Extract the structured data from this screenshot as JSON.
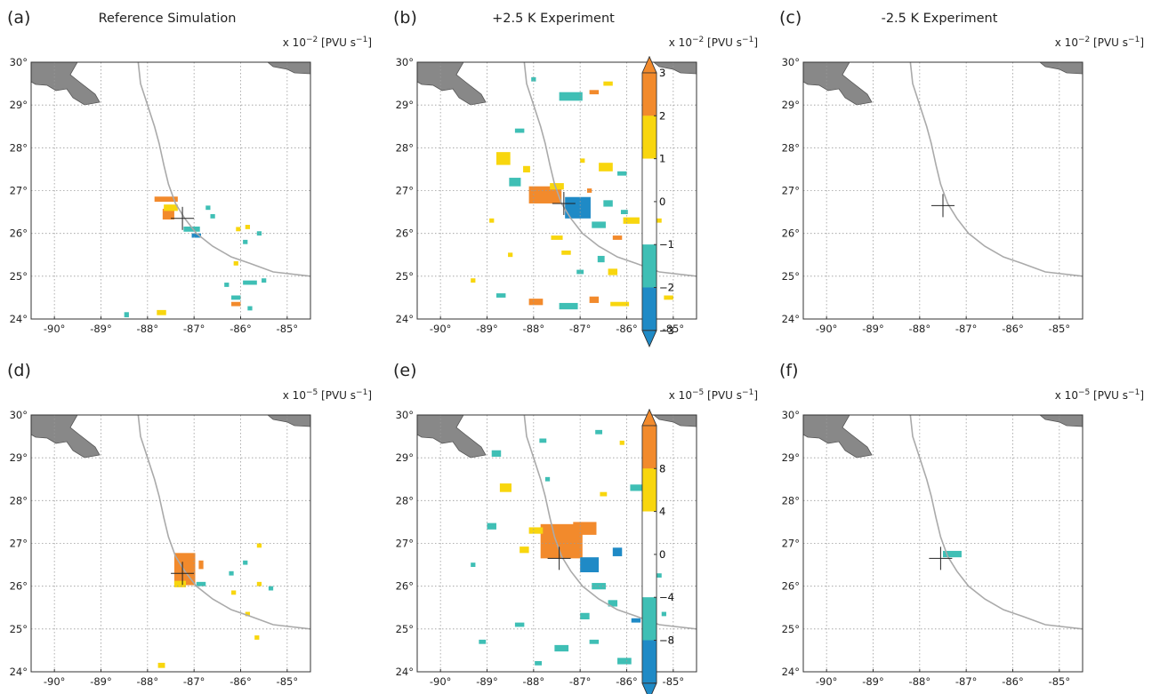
{
  "colors": {
    "orange": "#F28A2C",
    "yellow": "#F8D60E",
    "teal": "#3FBFB5",
    "blue": "#1F8AC6",
    "coast": "#AAAAAA",
    "land": "#888888",
    "grid": "#9A9A9A"
  },
  "chart_data": [
    {
      "panel": "(a)",
      "title": "Reference Simulation",
      "type": "heatmap",
      "units_prefix": "x 10",
      "units_exp": "−2",
      "units_suffix": "[PVU s",
      "units_suffix_exp": "−1",
      "units_close": "]",
      "colorbar": {
        "levels": [
          -3,
          -2,
          -1,
          0,
          1,
          2,
          3
        ],
        "tick_labels": [
          "−3",
          "−2",
          "−1",
          "0",
          "1",
          "2",
          "3"
        ],
        "classes": [
          "blue",
          "teal",
          "white",
          "white",
          "yellow",
          "orange"
        ],
        "extend": "both",
        "scale": 0.01
      },
      "xlim": [
        -90.5,
        -84.5
      ],
      "ylim": [
        24,
        30
      ],
      "xticks": [
        "-90°",
        "-89°",
        "-88°",
        "-87°",
        "-86°",
        "-85°"
      ],
      "yticks": [
        "24°",
        "25°",
        "26°",
        "27°",
        "28°",
        "29°",
        "30°"
      ],
      "grid": true,
      "marker": [
        -87.25,
        26.35
      ],
      "cells": [
        [
          -87.6,
          26.8,
          "orange",
          0.5,
          0.12
        ],
        [
          -87.55,
          26.45,
          "orange",
          0.25,
          0.25
        ],
        [
          -87.5,
          26.6,
          "yellow",
          0.3,
          0.15
        ],
        [
          -87.05,
          26.1,
          "teal",
          0.35,
          0.12
        ],
        [
          -86.95,
          25.95,
          "blue",
          0.2,
          0.1
        ],
        [
          -86.7,
          26.6,
          "teal",
          0.1,
          0.1
        ],
        [
          -86.6,
          26.4,
          "teal",
          0.1,
          0.1
        ],
        [
          -86.05,
          26.1,
          "yellow",
          0.1,
          0.1
        ],
        [
          -85.85,
          26.15,
          "yellow",
          0.1,
          0.1
        ],
        [
          -85.6,
          26.0,
          "teal",
          0.1,
          0.1
        ],
        [
          -85.9,
          25.8,
          "teal",
          0.1,
          0.1
        ],
        [
          -86.1,
          25.3,
          "yellow",
          0.1,
          0.1
        ],
        [
          -85.8,
          24.85,
          "teal",
          0.3,
          0.1
        ],
        [
          -85.5,
          24.9,
          "teal",
          0.1,
          0.1
        ],
        [
          -86.3,
          24.8,
          "teal",
          0.1,
          0.1
        ],
        [
          -86.1,
          24.5,
          "teal",
          0.2,
          0.1
        ],
        [
          -86.1,
          24.35,
          "orange",
          0.2,
          0.1
        ],
        [
          -85.8,
          24.25,
          "teal",
          0.1,
          0.1
        ],
        [
          -87.7,
          24.15,
          "yellow",
          0.2,
          0.12
        ],
        [
          -88.45,
          24.1,
          "teal",
          0.1,
          0.12
        ]
      ]
    },
    {
      "panel": "(b)",
      "title": "+2.5 K Experiment",
      "type": "heatmap",
      "units_prefix": "x 10",
      "units_exp": "−2",
      "units_suffix": "[PVU s",
      "units_suffix_exp": "−1",
      "units_close": "]",
      "colorbar": {
        "levels": [
          -3,
          -2,
          -1,
          0,
          1,
          2,
          3
        ],
        "tick_labels": [
          "−3",
          "−2",
          "−1",
          "0",
          "1",
          "2",
          "3"
        ],
        "classes": [
          "blue",
          "teal",
          "white",
          "white",
          "yellow",
          "orange"
        ],
        "extend": "both",
        "scale": 0.01
      },
      "xlim": [
        -90.5,
        -84.5
      ],
      "ylim": [
        24,
        30
      ],
      "xticks": [
        "-90°",
        "-89°",
        "-88°",
        "-87°",
        "-86°",
        "-85°"
      ],
      "yticks": [
        "24°",
        "25°",
        "26°",
        "27°",
        "28°",
        "29°",
        "30°"
      ],
      "grid": true,
      "marker": [
        -87.35,
        26.7
      ],
      "cells": [
        [
          -87.75,
          26.9,
          "orange",
          0.7,
          0.4
        ],
        [
          -87.05,
          26.6,
          "blue",
          0.55,
          0.5
        ],
        [
          -87.5,
          27.1,
          "yellow",
          0.3,
          0.15
        ],
        [
          -86.6,
          26.2,
          "teal",
          0.3,
          0.15
        ],
        [
          -86.2,
          25.9,
          "orange",
          0.2,
          0.1
        ],
        [
          -85.9,
          26.3,
          "yellow",
          0.35,
          0.15
        ],
        [
          -86.4,
          26.7,
          "teal",
          0.2,
          0.15
        ],
        [
          -86.8,
          27.0,
          "orange",
          0.1,
          0.1
        ],
        [
          -87.2,
          29.2,
          "teal",
          0.5,
          0.2
        ],
        [
          -86.7,
          29.3,
          "orange",
          0.2,
          0.1
        ],
        [
          -86.4,
          29.5,
          "yellow",
          0.2,
          0.1
        ],
        [
          -88.65,
          27.75,
          "yellow",
          0.3,
          0.3
        ],
        [
          -88.4,
          27.2,
          "teal",
          0.25,
          0.2
        ],
        [
          -88.15,
          27.5,
          "yellow",
          0.15,
          0.15
        ],
        [
          -86.45,
          27.55,
          "yellow",
          0.3,
          0.2
        ],
        [
          -86.1,
          27.4,
          "teal",
          0.2,
          0.1
        ],
        [
          -86.55,
          25.4,
          "teal",
          0.15,
          0.15
        ],
        [
          -86.3,
          25.1,
          "yellow",
          0.2,
          0.15
        ],
        [
          -87.5,
          25.9,
          "yellow",
          0.25,
          0.1
        ],
        [
          -87.3,
          25.55,
          "yellow",
          0.2,
          0.1
        ],
        [
          -88.7,
          24.55,
          "teal",
          0.2,
          0.1
        ],
        [
          -87.95,
          24.4,
          "orange",
          0.3,
          0.15
        ],
        [
          -87.25,
          24.3,
          "teal",
          0.4,
          0.15
        ],
        [
          -86.7,
          24.45,
          "orange",
          0.2,
          0.15
        ],
        [
          -86.15,
          24.35,
          "yellow",
          0.4,
          0.1
        ],
        [
          -85.55,
          24.55,
          "teal",
          0.2,
          0.1
        ],
        [
          -85.1,
          24.5,
          "yellow",
          0.2,
          0.1
        ],
        [
          -88.9,
          26.3,
          "yellow",
          0.1,
          0.1
        ],
        [
          -89.3,
          24.9,
          "yellow",
          0.1,
          0.1
        ],
        [
          -88.3,
          28.4,
          "teal",
          0.2,
          0.1
        ],
        [
          -85.6,
          29.2,
          "yellow",
          0.1,
          0.1
        ],
        [
          -88.0,
          29.6,
          "teal",
          0.1,
          0.1
        ],
        [
          -86.05,
          26.5,
          "teal",
          0.15,
          0.1
        ],
        [
          -85.6,
          25.3,
          "teal",
          0.15,
          0.1
        ],
        [
          -85.3,
          26.3,
          "yellow",
          0.1,
          0.1
        ],
        [
          -88.5,
          25.5,
          "yellow",
          0.1,
          0.1
        ],
        [
          -87.0,
          25.1,
          "teal",
          0.15,
          0.1
        ],
        [
          -86.95,
          27.7,
          "yellow",
          0.1,
          0.1
        ]
      ]
    },
    {
      "panel": "(c)",
      "title": "-2.5 K Experiment",
      "type": "heatmap",
      "units_prefix": "x 10",
      "units_exp": "−2",
      "units_suffix": "[PVU s",
      "units_suffix_exp": "−1",
      "units_close": "]",
      "colorbar": {
        "levels": [
          -3,
          -2,
          -1,
          0,
          1,
          2,
          3
        ],
        "tick_labels": [
          "−3",
          "−2",
          "−1",
          "0",
          "1",
          "2",
          "3"
        ],
        "classes": [
          "blue",
          "teal",
          "white",
          "white",
          "yellow",
          "orange"
        ],
        "extend": "both",
        "scale": 0.01
      },
      "xlim": [
        -90.5,
        -84.5
      ],
      "ylim": [
        24,
        30
      ],
      "xticks": [
        "-90°",
        "-89°",
        "-88°",
        "-87°",
        "-86°",
        "-85°"
      ],
      "yticks": [
        "24°",
        "25°",
        "26°",
        "27°",
        "28°",
        "29°",
        "30°"
      ],
      "grid": true,
      "marker": [
        -87.5,
        26.65
      ],
      "cells": []
    },
    {
      "panel": "(d)",
      "title": "",
      "type": "heatmap",
      "units_prefix": "x 10",
      "units_exp": "−5",
      "units_suffix": "[PVU s",
      "units_suffix_exp": "−1",
      "units_close": "]",
      "colorbar": {
        "levels": [
          -12,
          -8,
          -4,
          0,
          4,
          8,
          12
        ],
        "tick_labels": [
          "",
          "−8",
          "−4",
          "0",
          "4",
          "8",
          ""
        ],
        "classes": [
          "blue",
          "teal",
          "white",
          "white",
          "yellow",
          "orange"
        ],
        "extend": "both",
        "scale": 1e-05
      },
      "xlim": [
        -90.5,
        -84.5
      ],
      "ylim": [
        24,
        30
      ],
      "xticks": [
        "-90°",
        "-89°",
        "-88°",
        "-87°",
        "-86°",
        "-85°"
      ],
      "yticks": [
        "24°",
        "25°",
        "26°",
        "27°",
        "28°",
        "29°",
        "30°"
      ],
      "grid": true,
      "marker": [
        -87.25,
        26.3
      ],
      "cells": [
        [
          -87.2,
          26.4,
          "orange",
          0.45,
          0.75
        ],
        [
          -87.3,
          26.05,
          "yellow",
          0.25,
          0.15
        ],
        [
          -86.85,
          26.5,
          "orange",
          0.1,
          0.2
        ],
        [
          -86.85,
          26.05,
          "teal",
          0.2,
          0.1
        ],
        [
          -86.2,
          26.3,
          "teal",
          0.1,
          0.1
        ],
        [
          -86.15,
          25.85,
          "yellow",
          0.1,
          0.1
        ],
        [
          -85.9,
          26.55,
          "teal",
          0.1,
          0.1
        ],
        [
          -85.6,
          26.95,
          "yellow",
          0.1,
          0.1
        ],
        [
          -85.6,
          26.05,
          "yellow",
          0.1,
          0.1
        ],
        [
          -85.35,
          25.95,
          "teal",
          0.1,
          0.1
        ],
        [
          -85.85,
          25.35,
          "yellow",
          0.1,
          0.1
        ],
        [
          -85.65,
          24.8,
          "yellow",
          0.1,
          0.1
        ],
        [
          -87.7,
          24.15,
          "yellow",
          0.15,
          0.12
        ]
      ]
    },
    {
      "panel": "(e)",
      "title": "",
      "type": "heatmap",
      "units_prefix": "x 10",
      "units_exp": "−5",
      "units_suffix": "[PVU s",
      "units_suffix_exp": "−1",
      "units_close": "]",
      "colorbar": {
        "levels": [
          -12,
          -8,
          -4,
          0,
          4,
          8,
          12
        ],
        "tick_labels": [
          "",
          "−8",
          "−4",
          "0",
          "4",
          "8",
          ""
        ],
        "classes": [
          "blue",
          "teal",
          "white",
          "white",
          "yellow",
          "orange"
        ],
        "extend": "both",
        "scale": 1e-05
      },
      "xlim": [
        -90.5,
        -84.5
      ],
      "ylim": [
        24,
        30
      ],
      "xticks": [
        "-90°",
        "-89°",
        "-88°",
        "-87°",
        "-86°",
        "-85°"
      ],
      "yticks": [
        "24°",
        "25°",
        "26°",
        "27°",
        "28°",
        "29°",
        "30°"
      ],
      "grid": true,
      "marker": [
        -87.45,
        26.65
      ],
      "cells": [
        [
          -87.4,
          27.05,
          "orange",
          0.9,
          0.8
        ],
        [
          -86.9,
          27.35,
          "orange",
          0.5,
          0.3
        ],
        [
          -86.8,
          26.5,
          "blue",
          0.4,
          0.35
        ],
        [
          -86.2,
          26.8,
          "blue",
          0.2,
          0.2
        ],
        [
          -87.95,
          27.3,
          "yellow",
          0.3,
          0.15
        ],
        [
          -86.6,
          26.0,
          "teal",
          0.3,
          0.15
        ],
        [
          -86.3,
          25.6,
          "teal",
          0.2,
          0.15
        ],
        [
          -85.8,
          25.2,
          "blue",
          0.2,
          0.1
        ],
        [
          -88.8,
          29.1,
          "teal",
          0.2,
          0.15
        ],
        [
          -88.6,
          28.3,
          "yellow",
          0.25,
          0.2
        ],
        [
          -88.9,
          27.4,
          "teal",
          0.2,
          0.15
        ],
        [
          -88.2,
          26.85,
          "yellow",
          0.2,
          0.15
        ],
        [
          -87.8,
          29.4,
          "teal",
          0.15,
          0.1
        ],
        [
          -86.6,
          29.6,
          "teal",
          0.15,
          0.1
        ],
        [
          -85.6,
          29.0,
          "yellow",
          0.1,
          0.1
        ],
        [
          -85.8,
          28.3,
          "teal",
          0.25,
          0.15
        ],
        [
          -86.5,
          28.15,
          "yellow",
          0.15,
          0.1
        ],
        [
          -86.9,
          25.3,
          "teal",
          0.2,
          0.15
        ],
        [
          -87.4,
          24.55,
          "teal",
          0.3,
          0.15
        ],
        [
          -86.7,
          24.7,
          "teal",
          0.2,
          0.1
        ],
        [
          -86.05,
          24.25,
          "teal",
          0.3,
          0.15
        ],
        [
          -85.55,
          24.55,
          "teal",
          0.2,
          0.1
        ],
        [
          -88.3,
          25.1,
          "teal",
          0.2,
          0.1
        ],
        [
          -89.1,
          24.7,
          "teal",
          0.15,
          0.1
        ],
        [
          -85.3,
          26.25,
          "teal",
          0.1,
          0.1
        ],
        [
          -85.2,
          25.35,
          "teal",
          0.1,
          0.1
        ],
        [
          -89.3,
          26.5,
          "teal",
          0.1,
          0.1
        ],
        [
          -86.1,
          29.35,
          "yellow",
          0.1,
          0.1
        ],
        [
          -87.7,
          28.5,
          "teal",
          0.1,
          0.1
        ],
        [
          -87.9,
          24.2,
          "teal",
          0.15,
          0.1
        ]
      ]
    },
    {
      "panel": "(f)",
      "title": "",
      "type": "heatmap",
      "units_prefix": "x 10",
      "units_exp": "−5",
      "units_suffix": "[PVU s",
      "units_suffix_exp": "−1",
      "units_close": "]",
      "colorbar": {
        "levels": [
          -12,
          -8,
          -4,
          0,
          4,
          8,
          12
        ],
        "tick_labels": [
          "",
          "−8",
          "−4",
          "0",
          "4",
          "8",
          ""
        ],
        "classes": [
          "blue",
          "teal",
          "white",
          "white",
          "yellow",
          "orange"
        ],
        "extend": "both",
        "scale": 1e-05
      },
      "xlim": [
        -90.5,
        -84.5
      ],
      "ylim": [
        24,
        30
      ],
      "xticks": [
        "-90°",
        "-89°",
        "-88°",
        "-87°",
        "-86°",
        "-85°"
      ],
      "yticks": [
        "24°",
        "25°",
        "26°",
        "27°",
        "28°",
        "29°",
        "30°"
      ],
      "grid": true,
      "marker": [
        -87.55,
        26.65
      ],
      "cells": [
        [
          -87.3,
          26.75,
          "teal",
          0.4,
          0.15
        ]
      ]
    }
  ]
}
